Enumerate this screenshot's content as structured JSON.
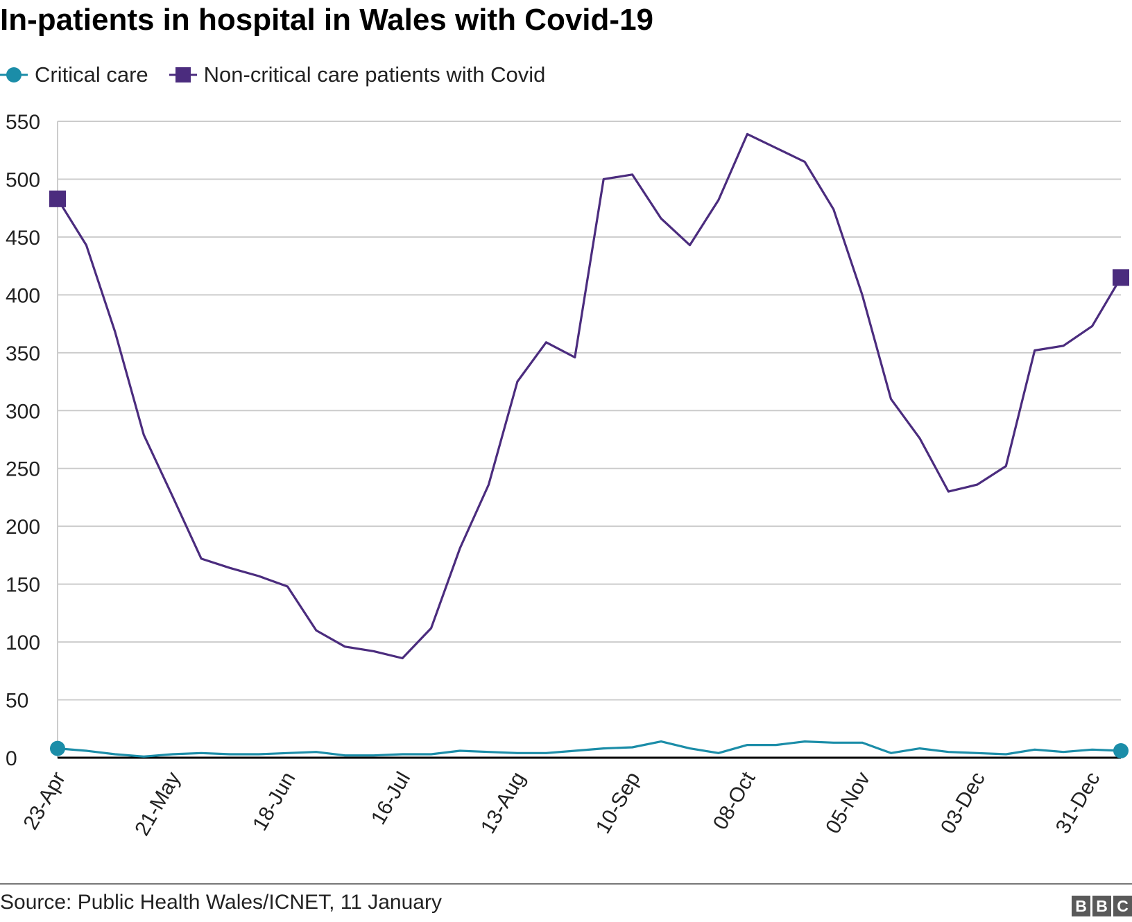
{
  "chart_data": {
    "type": "line",
    "title": "In-patients in hospital in Wales with Covid-19",
    "xlabel": "",
    "ylabel": "",
    "ylim": [
      0,
      550
    ],
    "yticks": [
      0,
      50,
      100,
      150,
      200,
      250,
      300,
      350,
      400,
      450,
      500,
      550
    ],
    "x_tick_labels": [
      "23-Apr",
      "21-May",
      "18-Jun",
      "16-Jul",
      "13-Aug",
      "10-Sep",
      "08-Oct",
      "05-Nov",
      "03-Dec",
      "31-Dec"
    ],
    "x": [
      "23-Apr",
      "30-Apr",
      "07-May",
      "14-May",
      "21-May",
      "28-May",
      "04-Jun",
      "11-Jun",
      "18-Jun",
      "25-Jun",
      "02-Jul",
      "09-Jul",
      "16-Jul",
      "23-Jul",
      "30-Jul",
      "06-Aug",
      "13-Aug",
      "20-Aug",
      "27-Aug",
      "03-Sep",
      "10-Sep",
      "17-Sep",
      "24-Sep",
      "01-Oct",
      "08-Oct",
      "15-Oct",
      "22-Oct",
      "29-Oct",
      "05-Nov",
      "12-Nov",
      "19-Nov",
      "26-Nov",
      "03-Dec",
      "10-Dec",
      "17-Dec",
      "24-Dec",
      "31-Dec",
      "07-Jan"
    ],
    "series": [
      {
        "name": "Critical care",
        "color": "#1b8da8",
        "marker": "circle",
        "values": [
          8,
          6,
          3,
          1,
          3,
          4,
          3,
          3,
          4,
          5,
          2,
          2,
          3,
          3,
          6,
          5,
          4,
          4,
          6,
          8,
          9,
          14,
          8,
          4,
          11,
          11,
          14,
          13,
          13,
          4,
          8,
          5,
          4,
          3,
          7,
          5,
          7,
          6
        ]
      },
      {
        "name": "Non-critical care patients with Covid",
        "color": "#4b2c7e",
        "marker": "square",
        "values": [
          483,
          443,
          368,
          279,
          226,
          172,
          164,
          157,
          148,
          110,
          96,
          92,
          86,
          112,
          181,
          236,
          325,
          359,
          346,
          500,
          504,
          466,
          443,
          482,
          539,
          527,
          515,
          474,
          400,
          310,
          276,
          230,
          236,
          252,
          352,
          356,
          373,
          415
        ]
      }
    ],
    "grid": true,
    "legend_position": "top-left"
  },
  "legend": {
    "items": [
      {
        "label": "Critical care",
        "marker": "circle",
        "color": "#1b8da8"
      },
      {
        "label": "Non-critical care patients with Covid",
        "marker": "square",
        "color": "#4b2c7e"
      }
    ]
  },
  "footer": {
    "source": "Source: Public Health Wales/ICNET, 11 January",
    "logo_letters": [
      "B",
      "B",
      "C"
    ]
  }
}
